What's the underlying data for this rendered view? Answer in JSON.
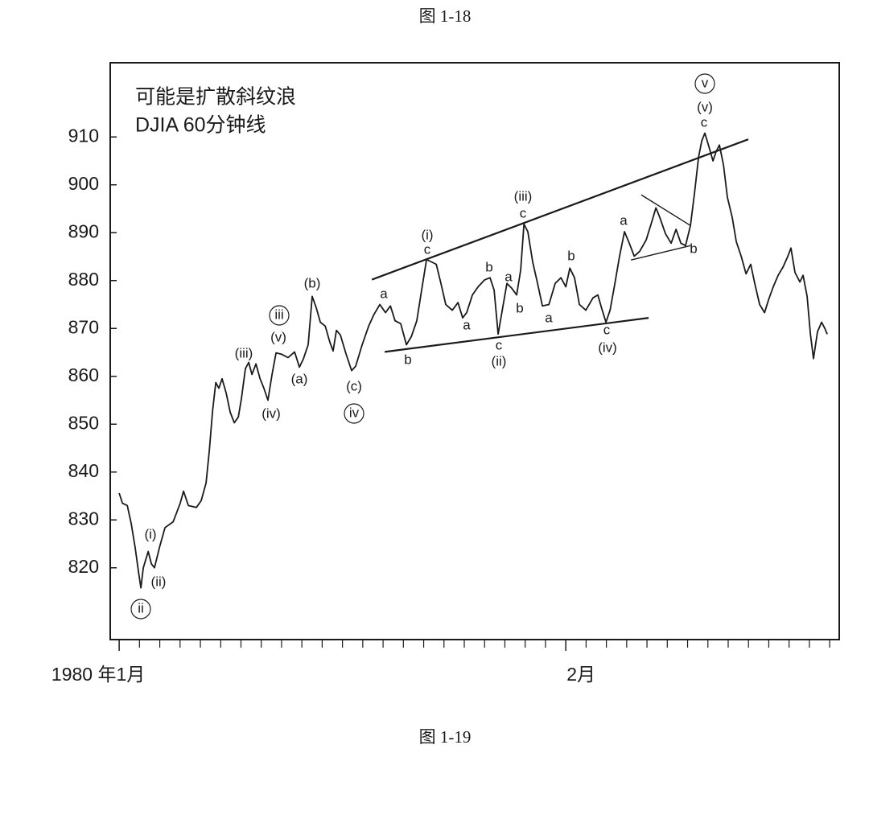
{
  "chart_data": {
    "type": "line",
    "caption_top": "图 1-18",
    "title": "可能是扩散斜纹浪",
    "subtitle": "DJIA 60分钟线",
    "caption": "图 1-19",
    "x": [
      0,
      0.16,
      0.4,
      0.59,
      0.79,
      0.95,
      1.07,
      1.19,
      1.43,
      1.59,
      1.74,
      1.98,
      2.26,
      2.66,
      3.01,
      3.17,
      3.41,
      3.8,
      4.04,
      4.28,
      4.44,
      4.6,
      4.76,
      4.91,
      5.07,
      5.27,
      5.47,
      5.67,
      5.87,
      6.02,
      6.22,
      6.38,
      6.54,
      6.74,
      6.94,
      7.13,
      7.33,
      7.53,
      7.73,
      8.01,
      8.32,
      8.64,
      8.88,
      9.08,
      9.31,
      9.51,
      9.71,
      9.91,
      10.15,
      10.38,
      10.54,
      10.7,
      10.9,
      11.18,
      11.45,
      11.65,
      11.97,
      12.29,
      12.56,
      12.84,
      13.12,
      13.36,
      13.59,
      13.87,
      14.15,
      14.39,
      14.66,
      14.9,
      15.14,
      15.38,
      15.62,
      15.85,
      16.09,
      16.41,
      16.69,
      16.92,
      17.12,
      17.4,
      17.68,
      17.99,
      18.27,
      18.47,
      18.67,
      18.87,
      19.1,
      19.34,
      19.58,
      19.78,
      19.94,
      20.13,
      20.37,
      20.61,
      20.85,
      21.17,
      21.48,
      21.76,
      22.0,
      22.2,
      22.43,
      22.67,
      22.99,
      23.34,
      23.58,
      23.78,
      23.98,
      24.18,
      24.42,
      24.65,
      24.89,
      25.13,
      25.37,
      25.64,
      25.96,
      26.24,
      26.44,
      26.63,
      26.91,
      27.19,
      27.43,
      27.67,
      27.9,
      28.14,
      28.34,
      28.54,
      28.7,
      28.85,
      29.05,
      29.25,
      29.41,
      29.57,
      29.77,
      29.96,
      30.2,
      30.4,
      30.64,
      30.88,
      31.11,
      31.31,
      31.55,
      31.79,
      31.99,
      32.22,
      32.46,
      32.7,
      32.94,
      33.09,
      33.29,
      33.53,
      33.69,
      33.89,
      34.05,
      34.2,
      34.4,
      34.6,
      34.76,
      34.88
    ],
    "series": [
      {
        "color": "#1a1a1a",
        "values": [
          835.6,
          833.5,
          833.0,
          829.3,
          824.2,
          819.2,
          815.8,
          820.0,
          823.4,
          820.8,
          820.0,
          824.2,
          828.4,
          829.6,
          833.5,
          836.0,
          833.0,
          832.6,
          834.0,
          837.7,
          844.4,
          852.8,
          858.7,
          857.5,
          859.5,
          856.5,
          852.5,
          850.3,
          851.5,
          855.3,
          861.6,
          862.9,
          860.4,
          862.6,
          859.5,
          857.5,
          855.0,
          860.4,
          864.9,
          864.6,
          863.9,
          865.1,
          861.9,
          863.7,
          866.6,
          876.7,
          874.3,
          871.3,
          870.5,
          867.1,
          865.3,
          869.6,
          868.6,
          864.6,
          861.2,
          862.1,
          866.6,
          870.5,
          873.0,
          875.0,
          873.3,
          874.7,
          871.6,
          871.0,
          866.6,
          868.3,
          871.6,
          878.0,
          884.4,
          883.9,
          883.4,
          879.4,
          875.0,
          873.8,
          875.4,
          872.2,
          873.3,
          877.0,
          878.7,
          880.1,
          880.6,
          878.0,
          868.8,
          873.8,
          879.4,
          878.4,
          877.0,
          882.2,
          891.8,
          890.2,
          883.9,
          879.4,
          874.7,
          875.0,
          879.4,
          880.6,
          878.7,
          882.6,
          880.6,
          875.0,
          873.8,
          876.4,
          877.0,
          874.0,
          871.3,
          873.8,
          879.4,
          885.1,
          890.2,
          887.8,
          885.1,
          886.1,
          888.5,
          892.3,
          895.2,
          893.2,
          889.8,
          887.8,
          890.7,
          887.8,
          887.3,
          891.5,
          898.2,
          905.8,
          909.2,
          910.8,
          908.0,
          905.0,
          907.0,
          908.3,
          904.1,
          897.4,
          893.2,
          888.1,
          885.1,
          881.4,
          883.4,
          879.4,
          875.0,
          873.3,
          876.0,
          878.7,
          881.1,
          882.8,
          885.1,
          886.8,
          881.7,
          879.7,
          881.1,
          876.7,
          868.8,
          863.7,
          869.3,
          871.3,
          870.0,
          868.8
        ]
      }
    ],
    "trend_lines": [
      {
        "x": [
          12.45,
          30.99
        ],
        "y": [
          880.2,
          909.5
        ]
      },
      {
        "x": [
          13.08,
          26.08
        ],
        "y": [
          865.1,
          872.2
        ]
      },
      {
        "x": [
          25.72,
          28.14
        ],
        "y": [
          897.9,
          891.5
        ]
      },
      {
        "x": [
          25.21,
          28.14
        ],
        "y": [
          884.3,
          887.3
        ]
      }
    ],
    "annotations": [
      "(i)",
      "(ii)",
      "ii",
      "(iii)",
      "(iv)",
      "(v)",
      "iii",
      "(a)",
      "(b)",
      "(c)",
      "iv",
      "a",
      "b",
      "(i)",
      "c",
      "a",
      "b",
      "a",
      "b",
      "c",
      "(ii)",
      "(iii)",
      "c",
      "a",
      "b",
      "c",
      "(iv)",
      "a",
      "b",
      "v",
      "(v)",
      "c"
    ],
    "xlim": [
      -0.44,
      35.47
    ],
    "ylim": [
      805,
      925.5
    ],
    "xticks": [
      {
        "value": 0,
        "label": "1980 年1月"
      },
      {
        "value": 22,
        "label": "2月"
      }
    ],
    "minor_xticks": [
      1,
      2,
      3,
      4,
      5,
      6,
      7,
      8,
      9,
      10,
      11,
      12,
      13,
      14,
      15,
      16,
      17,
      18,
      19,
      20,
      21,
      23,
      24,
      25,
      26,
      27,
      28,
      29,
      30,
      31,
      32,
      33,
      34,
      35
    ],
    "yticks": [
      820,
      830,
      840,
      850,
      860,
      870,
      880,
      890,
      900,
      910
    ]
  }
}
